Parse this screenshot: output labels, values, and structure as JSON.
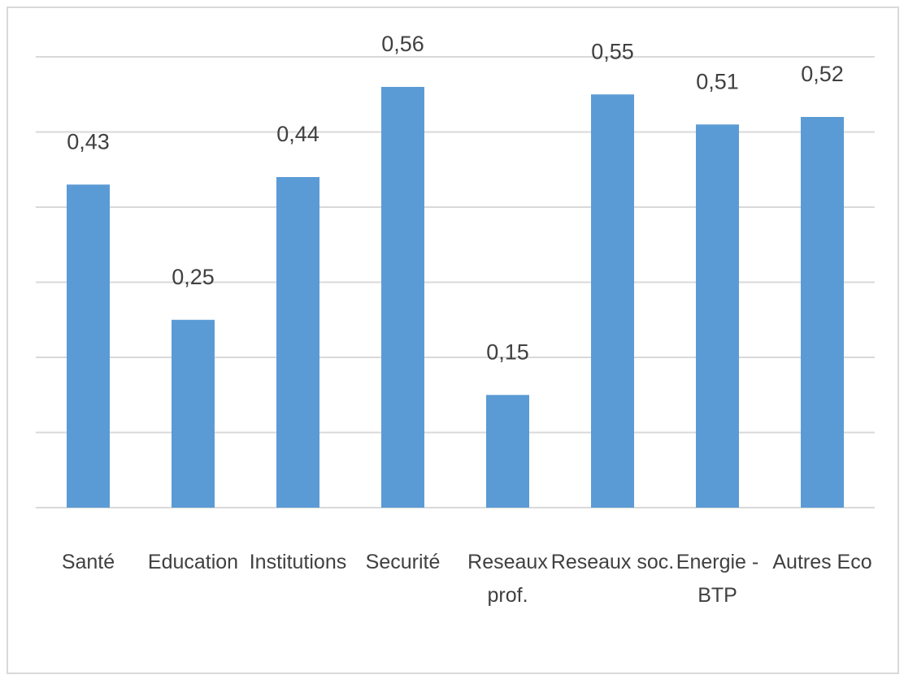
{
  "chart_data": {
    "type": "bar",
    "categories": [
      [
        "Santé"
      ],
      [
        "Education"
      ],
      [
        "Institutions"
      ],
      [
        "Securité"
      ],
      [
        "Reseaux",
        "prof."
      ],
      [
        "Reseaux soc."
      ],
      [
        "Energie -",
        "BTP"
      ],
      [
        "Autres Eco"
      ]
    ],
    "values": [
      0.43,
      0.25,
      0.44,
      0.56,
      0.15,
      0.55,
      0.51,
      0.52
    ],
    "data_labels": [
      "0,43",
      "0,25",
      "0,44",
      "0,56",
      "0,15",
      "0,55",
      "0,51",
      "0,52"
    ],
    "title": "",
    "xlabel": "",
    "ylabel": "",
    "ylim": [
      0,
      0.6
    ],
    "grid": true,
    "legend": "none",
    "bar_color": "#5b9bd5"
  }
}
